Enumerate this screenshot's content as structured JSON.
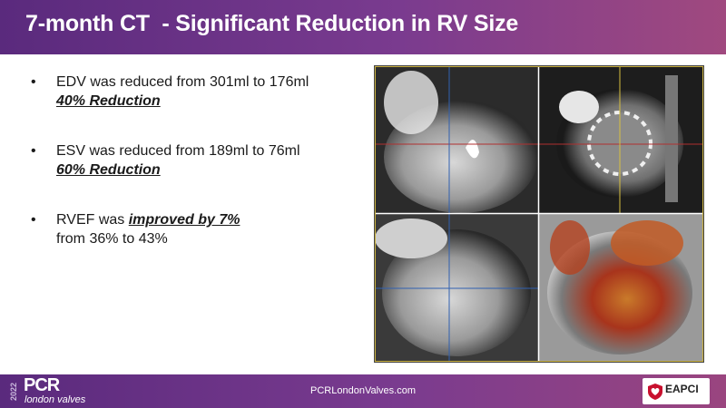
{
  "header": {
    "title": "7-month CT  - Significant Reduction in RV Size"
  },
  "bullets": [
    {
      "text": "EDV was reduced from 301ml to 176ml",
      "emphasis": "40% Reduction"
    },
    {
      "text": "ESV was reduced from 189ml to 76ml",
      "emphasis": "60% Reduction"
    },
    {
      "prefix": "RVEF was ",
      "emphasis": "improved by 7%",
      "line2": "from 36% to 43%"
    }
  ],
  "footer": {
    "year": "2022",
    "logo_main": "PCR",
    "logo_sub": "london valves",
    "website": "PCRLondonValves.com",
    "partner": "EAPCI"
  },
  "colors": {
    "header": "#6a3285",
    "footer": "#6a3285",
    "text": "#1a1a1a"
  },
  "image": {
    "description_icon": "ct-scan-quad-view-icon"
  }
}
